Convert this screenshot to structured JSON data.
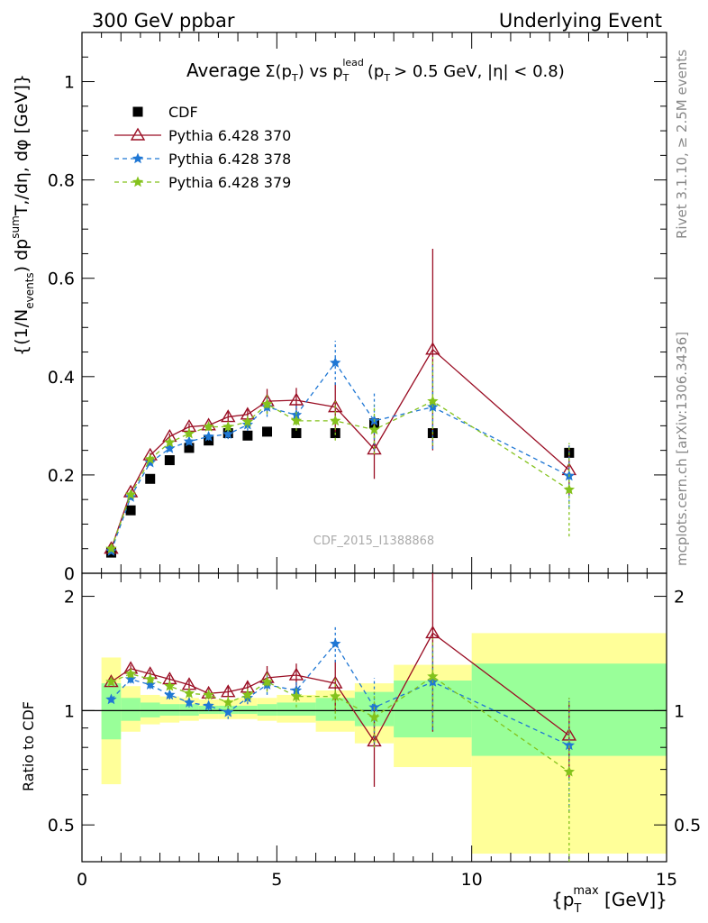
{
  "header": {
    "left": "300 GeV ppbar",
    "right": "Underlying Event"
  },
  "side": {
    "rivet": "Rivet 3.1.10, ≥ 2.5M events",
    "mcplots": "mcplots.cern.ch [arXiv:1306.3436]"
  },
  "watermark": "CDF_2015_I1388868",
  "colors": {
    "cdf": "#000000",
    "p370": "#9a0e24",
    "p378": "#1f77d4",
    "p379": "#84c21c",
    "band_green": "#99ff99",
    "band_yellow": "#ffff99"
  },
  "chart_data": [
    {
      "type": "scatter",
      "title_parts": {
        "a": "Average",
        "b": "Σ(p",
        "b_sub": "T",
        "c": ") vs p",
        "c_sub": "T",
        "c_sup": "lead",
        "d": "(p",
        "d_sub": "T",
        "e": "> 0.5 GeV, |η| < 0.8)"
      },
      "ylabel_text": "{(1/N_events) dp^sum T,/dη, dφ [GeV]}",
      "ylabel_parts": {
        "a": "{(1/N",
        "a_sub": "events",
        "b": ") dp",
        "b_sup": "sum",
        "c": "T,/dη, dφ [GeV]}"
      },
      "xlim": [
        0,
        15
      ],
      "ylim": [
        0,
        1.1
      ],
      "yticks": [
        0.2,
        0.4,
        0.6,
        0.8,
        1
      ],
      "ytick_labels": [
        "0.2",
        "0.4",
        "0.6",
        "0.8",
        "1"
      ],
      "ybottom_label": "0",
      "legend_position": "top-left",
      "series": [
        {
          "name": "CDF",
          "marker": "square",
          "x": [
            0.75,
            1.25,
            1.75,
            2.25,
            2.75,
            3.25,
            3.75,
            4.25,
            4.75,
            5.5,
            6.5,
            7.5,
            9.0,
            12.5
          ],
          "y": [
            0.042,
            0.128,
            0.192,
            0.23,
            0.255,
            0.27,
            0.285,
            0.28,
            0.288,
            0.285,
            0.285,
            0.305,
            0.285,
            0.245
          ]
        },
        {
          "name": "Pythia 6.428 370",
          "marker": "triangle",
          "x": [
            0.75,
            1.25,
            1.75,
            2.25,
            2.75,
            3.25,
            3.75,
            4.25,
            4.75,
            5.5,
            6.5,
            7.5,
            9.0,
            12.5
          ],
          "y": [
            0.05,
            0.165,
            0.24,
            0.278,
            0.298,
            0.301,
            0.318,
            0.323,
            0.35,
            0.352,
            0.338,
            0.252,
            0.455,
            0.21
          ],
          "err": [
            0.002,
            0.004,
            0.005,
            0.006,
            0.007,
            0.008,
            0.01,
            0.013,
            0.025,
            0.025,
            0.05,
            0.06,
            0.205,
            0.05
          ]
        },
        {
          "name": "Pythia 6.428 378",
          "marker": "star",
          "x": [
            0.75,
            1.25,
            1.75,
            2.25,
            2.75,
            3.25,
            3.75,
            4.25,
            4.75,
            5.5,
            6.5,
            7.5,
            9.0,
            12.5
          ],
          "y": [
            0.045,
            0.155,
            0.225,
            0.254,
            0.268,
            0.278,
            0.283,
            0.302,
            0.338,
            0.322,
            0.428,
            0.31,
            0.338,
            0.198
          ],
          "err": [
            0.002,
            0.004,
            0.005,
            0.006,
            0.007,
            0.008,
            0.01,
            0.012,
            0.02,
            0.02,
            0.045,
            0.06,
            0.085,
            0.065
          ]
        },
        {
          "name": "Pythia 6.428 379",
          "marker": "star",
          "x": [
            0.75,
            1.25,
            1.75,
            2.25,
            2.75,
            3.25,
            3.75,
            4.25,
            4.75,
            5.5,
            6.5,
            7.5,
            9.0,
            12.5
          ],
          "y": [
            0.05,
            0.16,
            0.232,
            0.266,
            0.284,
            0.298,
            0.298,
            0.308,
            0.344,
            0.31,
            0.31,
            0.292,
            0.35,
            0.17
          ],
          "err": [
            0.002,
            0.004,
            0.005,
            0.006,
            0.007,
            0.008,
            0.01,
            0.012,
            0.02,
            0.02,
            0.04,
            0.05,
            0.09,
            0.095
          ]
        }
      ]
    },
    {
      "type": "scatter",
      "ylabel": "Ratio to CDF",
      "xlabel_text": "{p_T^max [GeV]}",
      "xlabel_parts": {
        "a": "{p",
        "a_sub": "T",
        "a_sup": "max",
        "b": " [GeV]}"
      },
      "xlim": [
        0,
        15
      ],
      "ylim": [
        0.4,
        2.3
      ],
      "yscale": "log",
      "xticks": [
        0,
        5,
        10,
        15
      ],
      "xtick_labels": [
        "0",
        "5",
        "10",
        "15"
      ],
      "yticks": [
        0.5,
        1,
        2
      ],
      "ytick_labels": [
        "0.5",
        "1",
        "2"
      ],
      "reference_line": 1,
      "bands": [
        {
          "x0": 0.5,
          "x1": 1.0,
          "yellow": [
            0.64,
            1.38
          ],
          "green": [
            0.84,
            1.18
          ]
        },
        {
          "x0": 1.0,
          "x1": 1.5,
          "yellow": [
            0.88,
            1.16
          ],
          "green": [
            0.94,
            1.08
          ]
        },
        {
          "x0": 1.5,
          "x1": 2.0,
          "yellow": [
            0.92,
            1.1
          ],
          "green": [
            0.96,
            1.05
          ]
        },
        {
          "x0": 2.0,
          "x1": 2.5,
          "yellow": [
            0.93,
            1.09
          ],
          "green": [
            0.97,
            1.04
          ]
        },
        {
          "x0": 2.5,
          "x1": 3.0,
          "yellow": [
            0.94,
            1.08
          ],
          "green": [
            0.97,
            1.04
          ]
        },
        {
          "x0": 3.0,
          "x1": 3.5,
          "yellow": [
            0.95,
            1.07
          ],
          "green": [
            0.98,
            1.03
          ]
        },
        {
          "x0": 3.5,
          "x1": 4.0,
          "yellow": [
            0.95,
            1.07
          ],
          "green": [
            0.98,
            1.03
          ]
        },
        {
          "x0": 4.0,
          "x1": 4.5,
          "yellow": [
            0.95,
            1.08
          ],
          "green": [
            0.98,
            1.03
          ]
        },
        {
          "x0": 4.5,
          "x1": 5.0,
          "yellow": [
            0.94,
            1.08
          ],
          "green": [
            0.97,
            1.04
          ]
        },
        {
          "x0": 5.0,
          "x1": 6.0,
          "yellow": [
            0.93,
            1.1
          ],
          "green": [
            0.97,
            1.05
          ]
        },
        {
          "x0": 6.0,
          "x1": 7.0,
          "yellow": [
            0.88,
            1.13
          ],
          "green": [
            0.94,
            1.08
          ]
        },
        {
          "x0": 7.0,
          "x1": 8.0,
          "yellow": [
            0.82,
            1.18
          ],
          "green": [
            0.91,
            1.12
          ]
        },
        {
          "x0": 8.0,
          "x1": 10.0,
          "yellow": [
            0.71,
            1.32
          ],
          "green": [
            0.85,
            1.2
          ]
        },
        {
          "x0": 10.0,
          "x1": 15.0,
          "yellow": [
            0.42,
            1.6
          ],
          "green": [
            0.76,
            1.33
          ]
        }
      ],
      "series": [
        {
          "name": "Pythia 6.428 370",
          "marker": "triangle",
          "x": [
            0.75,
            1.25,
            1.75,
            2.25,
            2.75,
            3.25,
            3.75,
            4.25,
            4.75,
            5.5,
            6.5,
            7.5,
            9.0,
            12.5
          ],
          "y": [
            1.19,
            1.29,
            1.25,
            1.21,
            1.17,
            1.11,
            1.12,
            1.15,
            1.22,
            1.24,
            1.18,
            0.83,
            1.6,
            0.86
          ],
          "err": [
            0.02,
            0.03,
            0.03,
            0.03,
            0.03,
            0.03,
            0.04,
            0.05,
            0.09,
            0.09,
            0.18,
            0.2,
            0.72,
            0.2
          ]
        },
        {
          "name": "Pythia 6.428 378",
          "marker": "star",
          "x": [
            0.75,
            1.25,
            1.75,
            2.25,
            2.75,
            3.25,
            3.75,
            4.25,
            4.75,
            5.5,
            6.5,
            7.5,
            9.0,
            12.5
          ],
          "y": [
            1.07,
            1.21,
            1.17,
            1.1,
            1.05,
            1.03,
            0.99,
            1.08,
            1.17,
            1.13,
            1.5,
            1.02,
            1.19,
            0.81
          ],
          "err": [
            0.02,
            0.03,
            0.03,
            0.03,
            0.03,
            0.03,
            0.04,
            0.04,
            0.07,
            0.07,
            0.16,
            0.2,
            0.3,
            0.27
          ]
        },
        {
          "name": "Pythia 6.428 379",
          "marker": "star",
          "x": [
            0.75,
            1.25,
            1.75,
            2.25,
            2.75,
            3.25,
            3.75,
            4.25,
            4.75,
            5.5,
            6.5,
            7.5,
            9.0,
            12.5
          ],
          "y": [
            1.19,
            1.25,
            1.21,
            1.16,
            1.11,
            1.1,
            1.05,
            1.1,
            1.19,
            1.09,
            1.09,
            0.96,
            1.23,
            0.69
          ],
          "err": [
            0.02,
            0.03,
            0.03,
            0.03,
            0.03,
            0.03,
            0.04,
            0.04,
            0.07,
            0.07,
            0.14,
            0.16,
            0.32,
            0.39
          ]
        }
      ]
    }
  ]
}
